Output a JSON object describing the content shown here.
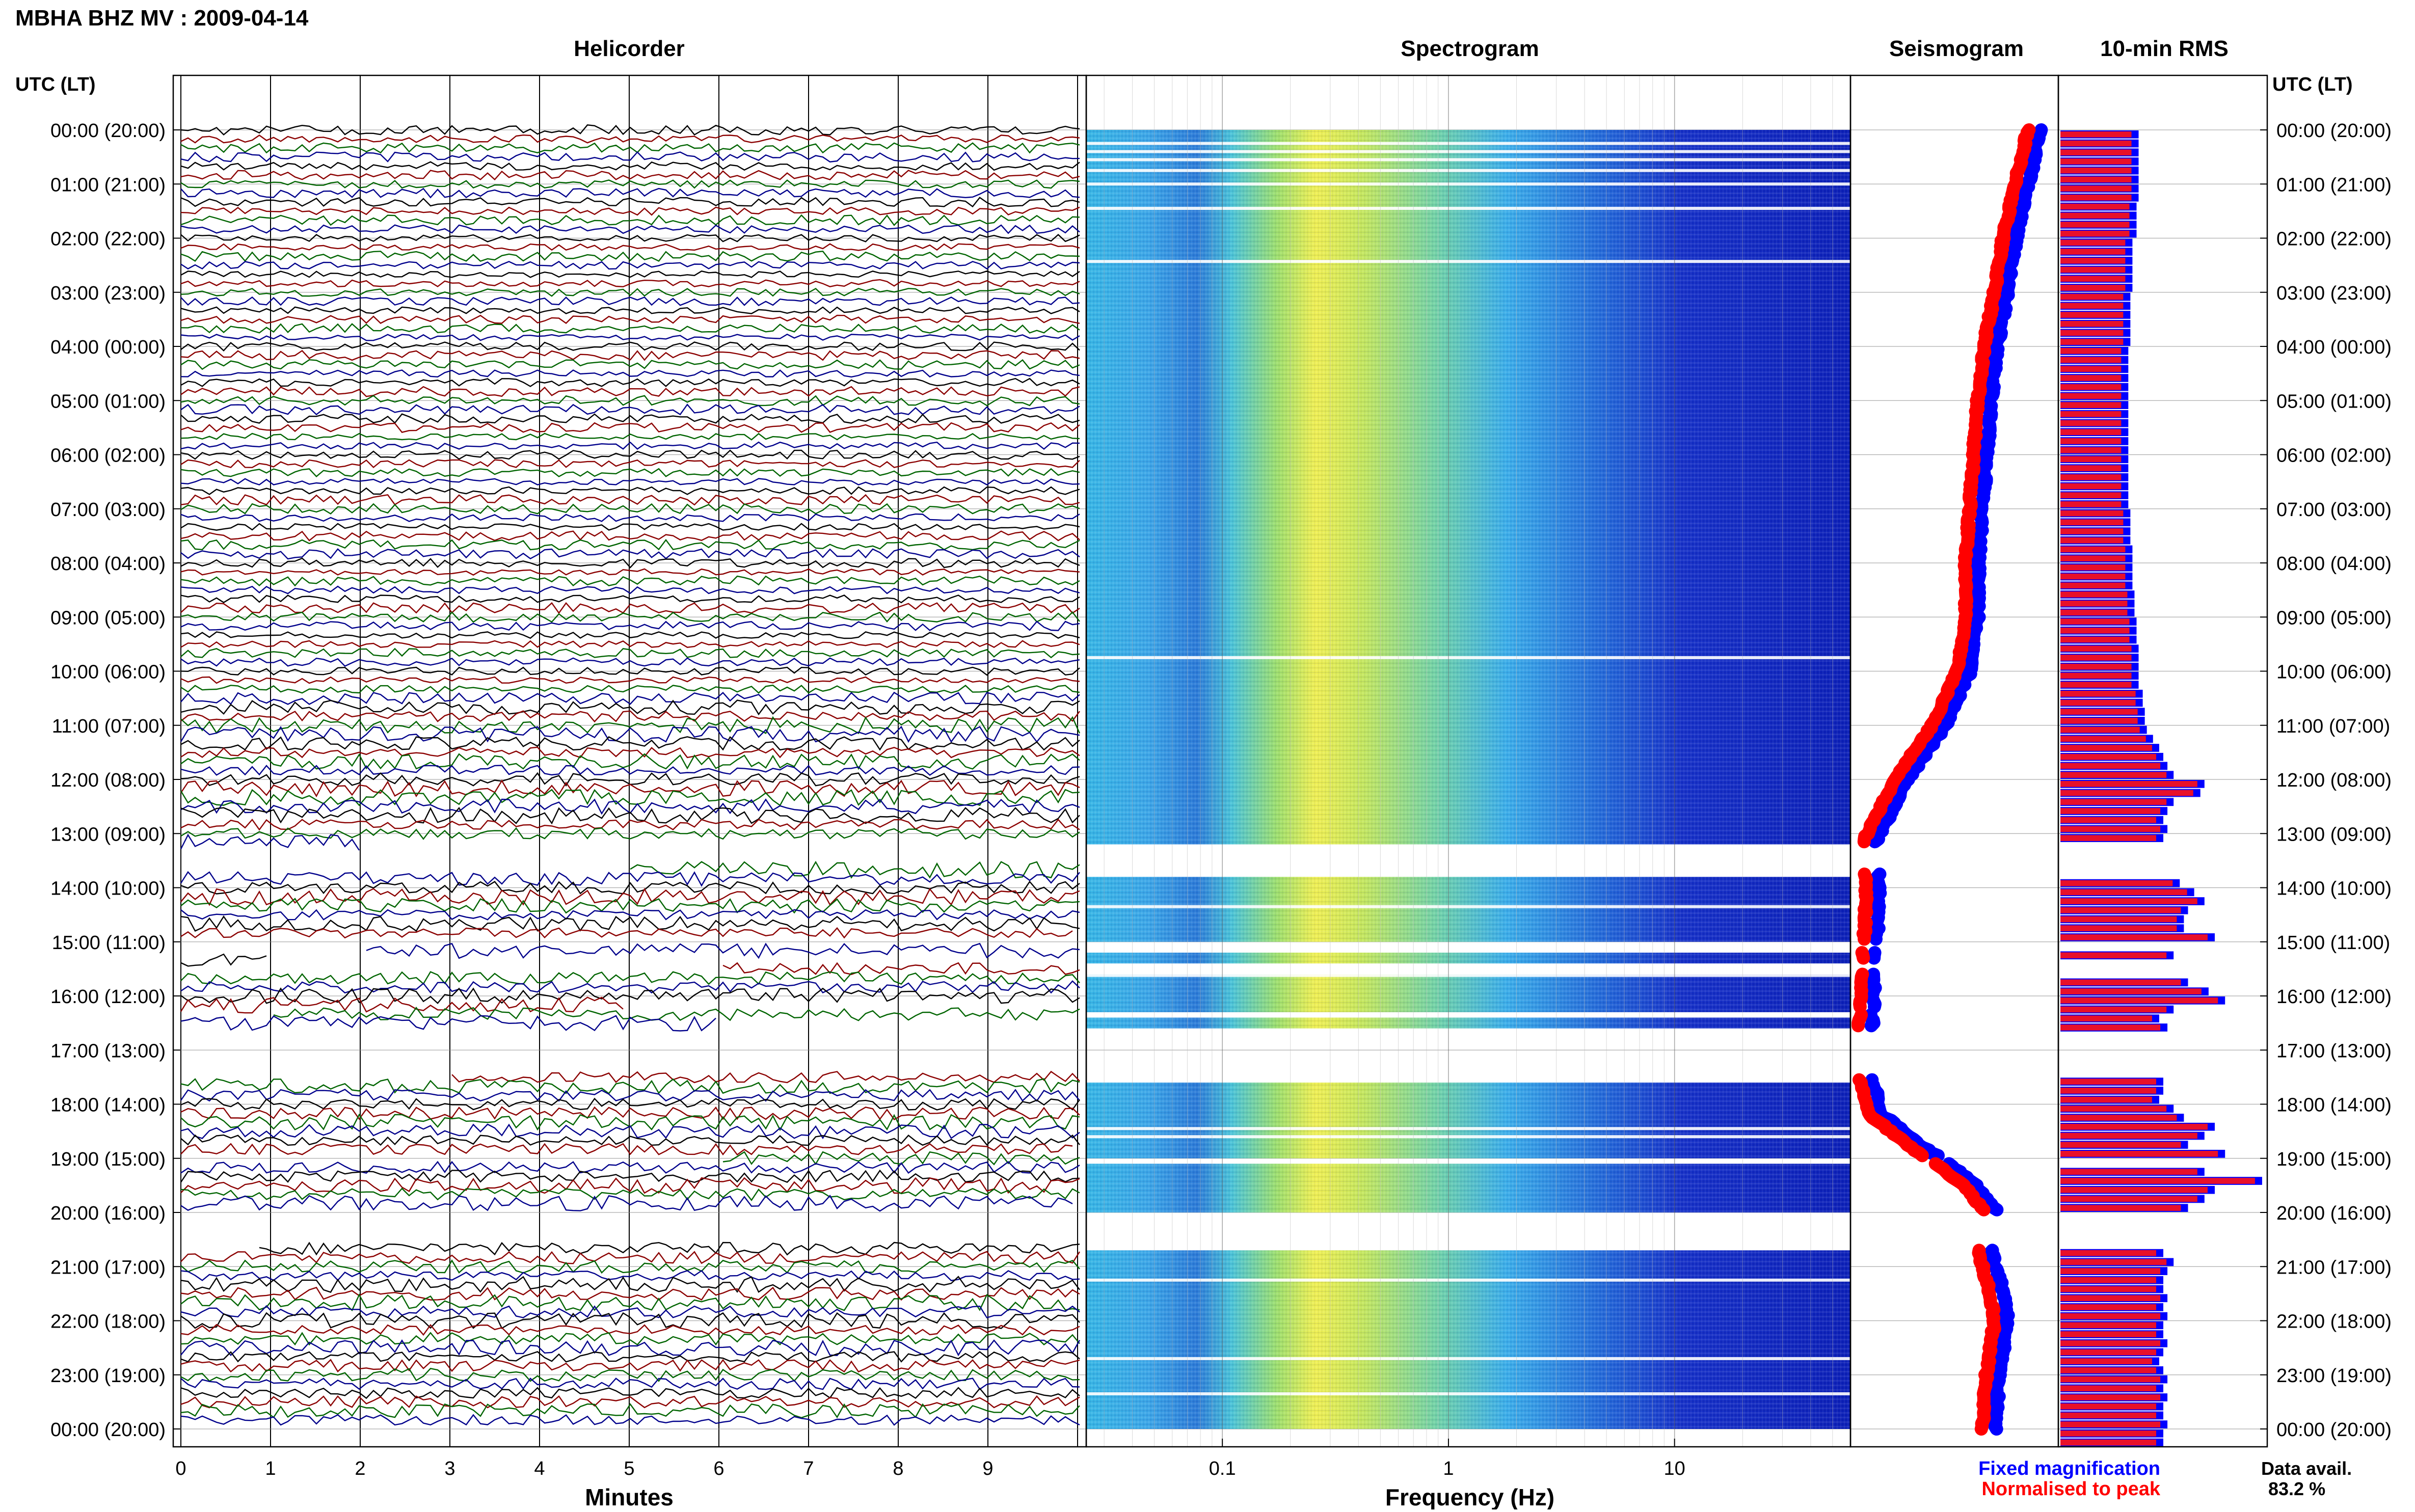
{
  "header": {
    "title": "MBHA BHZ MV : 2009-04-14"
  },
  "panels": {
    "helicorder": "Helicorder",
    "spectrogram": "Spectrogram",
    "seismogram": "Seismogram",
    "rms": "10-min RMS"
  },
  "axes": {
    "left_header": "UTC (LT)",
    "right_header": "UTC (LT)",
    "helicorder_xlabel": "Minutes",
    "spectrogram_xlabel": "Frequency (Hz)",
    "helicorder_xticks": [
      "0",
      "1",
      "2",
      "3",
      "4",
      "5",
      "6",
      "7",
      "8",
      "9"
    ],
    "spectrogram_xticks": [
      "0.1",
      "1",
      "10"
    ],
    "time_labels": [
      "00:00 (20:00)",
      "01:00 (21:00)",
      "02:00 (22:00)",
      "03:00 (23:00)",
      "04:00 (00:00)",
      "05:00 (01:00)",
      "06:00 (02:00)",
      "07:00 (03:00)",
      "08:00 (04:00)",
      "09:00 (05:00)",
      "10:00 (06:00)",
      "11:00 (07:00)",
      "12:00 (08:00)",
      "13:00 (09:00)",
      "14:00 (10:00)",
      "15:00 (11:00)",
      "16:00 (12:00)",
      "17:00 (13:00)",
      "18:00 (14:00)",
      "19:00 (15:00)",
      "20:00 (16:00)",
      "21:00 (17:00)",
      "22:00 (18:00)",
      "23:00 (19:00)",
      "00:00 (20:00)"
    ]
  },
  "legend": {
    "fixed": "Fixed magnification",
    "normalised": "Normalised to peak",
    "fixed_color": "#0000ff",
    "normalised_color": "#ff0000"
  },
  "footer": {
    "data_avail_label": "Data avail.",
    "data_avail_value": "83.2 %"
  },
  "colors": {
    "trace_cycle": [
      "#000000",
      "#8b0000",
      "#006400",
      "#00008b"
    ],
    "rms_fixed": "#0000ff",
    "rms_normalised": "#e8102a"
  },
  "chart_data": {
    "type": "heatmap",
    "helicorder_xlim": [
      0,
      10
    ],
    "spectrogram_xlim_hz": [
      0.025,
      60
    ],
    "spectrogram_scale": "log",
    "time_range_hours": [
      0,
      24
    ],
    "gap_hours": [
      [
        13.2,
        13.75
      ],
      [
        15.0,
        15.2
      ],
      [
        15.35,
        15.6
      ],
      [
        16.25,
        16.35
      ],
      [
        16.6,
        17.55
      ],
      [
        19.0,
        19.1
      ],
      [
        20.0,
        20.68
      ]
    ],
    "rms_10min": [
      0.38,
      0.38,
      0.38,
      0.38,
      0.38,
      0.38,
      0.38,
      0.38,
      0.37,
      0.37,
      0.37,
      0.37,
      0.35,
      0.35,
      0.35,
      0.35,
      0.35,
      0.35,
      0.34,
      0.34,
      0.34,
      0.34,
      0.34,
      0.34,
      0.33,
      0.33,
      0.33,
      0.33,
      0.33,
      0.33,
      0.33,
      0.33,
      0.33,
      0.33,
      0.33,
      0.33,
      0.33,
      0.33,
      0.33,
      0.33,
      0.33,
      0.33,
      0.34,
      0.34,
      0.34,
      0.34,
      0.35,
      0.35,
      0.35,
      0.35,
      0.35,
      0.36,
      0.36,
      0.36,
      0.37,
      0.37,
      0.37,
      0.38,
      0.38,
      0.38,
      0.38,
      0.38,
      0.4,
      0.4,
      0.41,
      0.41,
      0.42,
      0.45,
      0.48,
      0.5,
      0.52,
      0.55,
      0.7,
      0.68,
      0.55,
      0.52,
      0.5,
      0.52,
      0.5,
      0.52,
      0.55,
      0.54,
      0.55,
      0.58,
      0.65,
      0.7,
      0.62,
      0.6,
      0.6,
      0.75,
      0.7,
      0.55,
      0.5,
      0.6,
      0.62,
      0.72,
      0.8,
      0.55,
      0.48,
      0.52,
      0.5,
      0.55,
      0.5,
      0.48,
      0.5,
      0.5,
      0.5,
      0.48,
      0.55,
      0.6,
      0.75,
      0.7,
      0.62,
      0.8,
      0.85,
      0.7,
      0.98,
      0.75,
      0.7,
      0.62,
      0.6,
      0.55,
      0.5,
      0.48,
      0.5,
      0.55,
      0.52,
      0.5,
      0.5,
      0.52,
      0.5,
      0.52,
      0.5,
      0.5,
      0.52,
      0.5,
      0.48,
      0.5,
      0.52,
      0.5,
      0.52,
      0.5,
      0.5,
      0.52,
      0.5,
      0.5
    ]
  }
}
